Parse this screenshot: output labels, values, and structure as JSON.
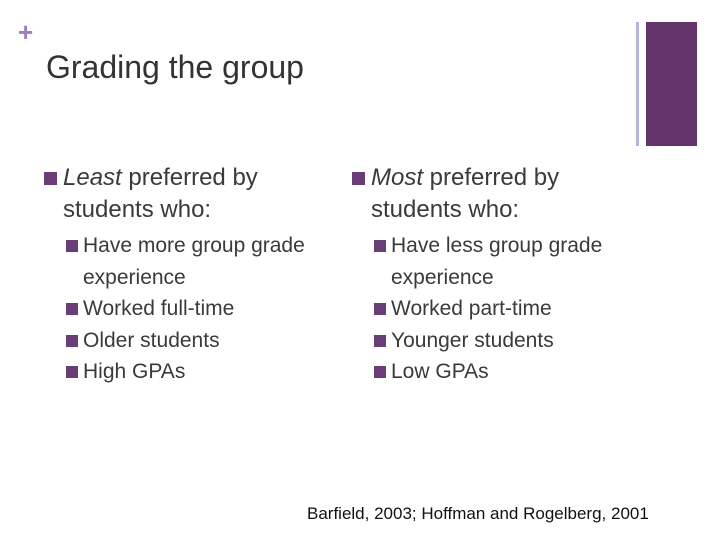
{
  "slide": {
    "corner_symbol": "+",
    "title": "Grading the group",
    "accent_color": "#64356a",
    "bullet_color": "#6a3d78",
    "left_column": {
      "heading_emphasis": "Least",
      "heading_rest": " preferred by students who:",
      "items": [
        "Have more group grade experience",
        "Worked full-time",
        "Older students",
        "High GPAs"
      ]
    },
    "right_column": {
      "heading_emphasis": "Most",
      "heading_rest": " preferred by students who:",
      "items": [
        "Have less group grade experience",
        "Worked part-time",
        "Younger students",
        "Low GPAs"
      ]
    },
    "citation": "Barfield, 2003; Hoffman and Rogelberg, 2001"
  }
}
